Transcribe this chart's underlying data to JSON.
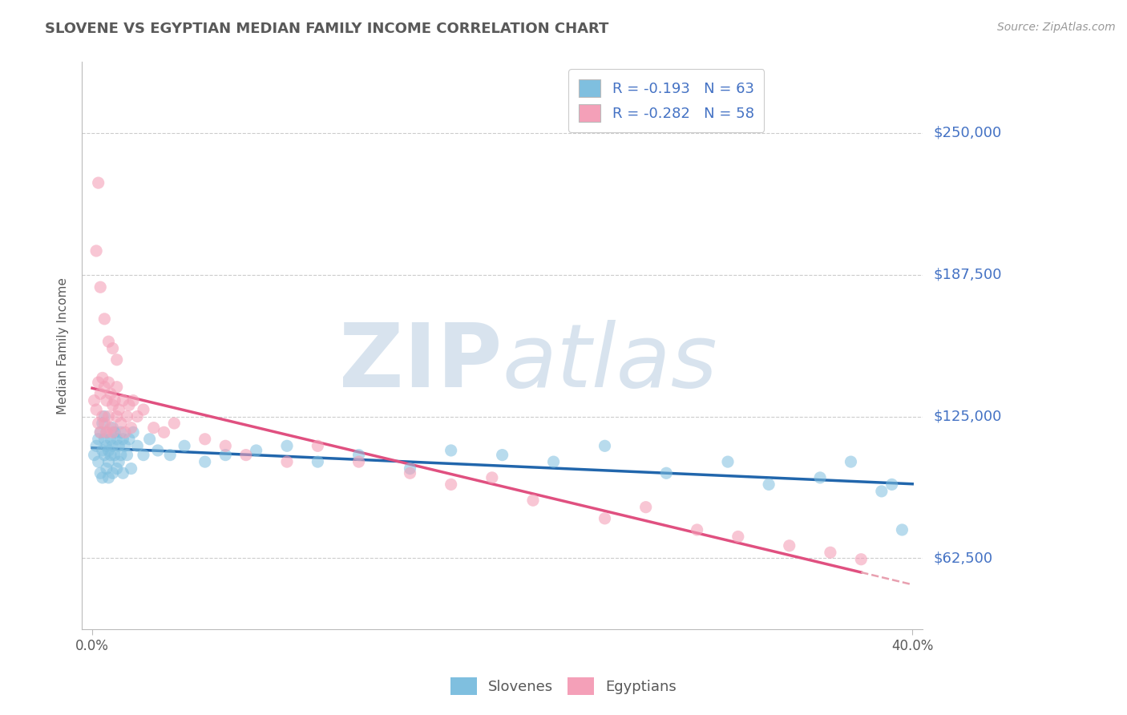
{
  "title": "SLOVENE VS EGYPTIAN MEDIAN FAMILY INCOME CORRELATION CHART",
  "source_text": "Source: ZipAtlas.com",
  "ylabel": "Median Family Income",
  "xlabel": "",
  "xlim": [
    -0.005,
    0.405
  ],
  "ylim": [
    31250,
    281250
  ],
  "yticks": [
    62500,
    125000,
    187500,
    250000
  ],
  "ytick_labels": [
    "$62,500",
    "$125,000",
    "$187,500",
    "$250,000"
  ],
  "xticks": [
    0.0,
    0.4
  ],
  "xtick_labels": [
    "0.0%",
    "40.0%"
  ],
  "slovene_R": -0.193,
  "slovene_N": 63,
  "egyptian_R": -0.282,
  "egyptian_N": 58,
  "slovene_color": "#7fbfdf",
  "egyptian_color": "#f4a0b8",
  "slovene_line_color": "#2166ac",
  "egyptian_line_color": "#e05080",
  "egyptian_line_dash_color": "#e8a0b0",
  "axis_color": "#4472c4",
  "title_color": "#595959",
  "legend_text_color": "#4472c4",
  "slovene_x": [
    0.001,
    0.002,
    0.003,
    0.003,
    0.004,
    0.004,
    0.005,
    0.005,
    0.005,
    0.006,
    0.006,
    0.006,
    0.007,
    0.007,
    0.007,
    0.008,
    0.008,
    0.008,
    0.009,
    0.009,
    0.01,
    0.01,
    0.01,
    0.011,
    0.011,
    0.012,
    0.012,
    0.013,
    0.013,
    0.014,
    0.014,
    0.015,
    0.015,
    0.016,
    0.017,
    0.018,
    0.019,
    0.02,
    0.022,
    0.025,
    0.028,
    0.032,
    0.038,
    0.045,
    0.055,
    0.065,
    0.08,
    0.095,
    0.11,
    0.13,
    0.155,
    0.175,
    0.2,
    0.225,
    0.25,
    0.28,
    0.31,
    0.33,
    0.355,
    0.37,
    0.385,
    0.39,
    0.395
  ],
  "slovene_y": [
    108000,
    112000,
    115000,
    105000,
    118000,
    100000,
    122000,
    110000,
    98000,
    115000,
    108000,
    125000,
    112000,
    102000,
    118000,
    110000,
    105000,
    98000,
    115000,
    108000,
    120000,
    112000,
    100000,
    118000,
    108000,
    115000,
    102000,
    112000,
    105000,
    118000,
    108000,
    115000,
    100000,
    112000,
    108000,
    115000,
    102000,
    118000,
    112000,
    108000,
    115000,
    110000,
    108000,
    112000,
    105000,
    108000,
    110000,
    112000,
    105000,
    108000,
    102000,
    110000,
    108000,
    105000,
    112000,
    100000,
    105000,
    95000,
    98000,
    105000,
    92000,
    95000,
    75000
  ],
  "egyptian_x": [
    0.001,
    0.002,
    0.003,
    0.003,
    0.004,
    0.004,
    0.005,
    0.005,
    0.006,
    0.006,
    0.007,
    0.007,
    0.008,
    0.008,
    0.009,
    0.009,
    0.01,
    0.01,
    0.011,
    0.012,
    0.012,
    0.013,
    0.014,
    0.015,
    0.016,
    0.017,
    0.018,
    0.019,
    0.02,
    0.022,
    0.025,
    0.03,
    0.035,
    0.04,
    0.055,
    0.065,
    0.075,
    0.095,
    0.11,
    0.13,
    0.155,
    0.175,
    0.195,
    0.215,
    0.25,
    0.27,
    0.295,
    0.315,
    0.34,
    0.36,
    0.375,
    0.003,
    0.002,
    0.004,
    0.006,
    0.008,
    0.01,
    0.012
  ],
  "egyptian_y": [
    132000,
    128000,
    140000,
    122000,
    135000,
    118000,
    142000,
    125000,
    138000,
    122000,
    132000,
    118000,
    140000,
    125000,
    135000,
    120000,
    130000,
    118000,
    132000,
    125000,
    138000,
    128000,
    122000,
    132000,
    118000,
    125000,
    130000,
    120000,
    132000,
    125000,
    128000,
    120000,
    118000,
    122000,
    115000,
    112000,
    108000,
    105000,
    112000,
    105000,
    100000,
    95000,
    98000,
    88000,
    80000,
    85000,
    75000,
    72000,
    68000,
    65000,
    62000,
    228000,
    198000,
    182000,
    168000,
    158000,
    155000,
    150000
  ]
}
